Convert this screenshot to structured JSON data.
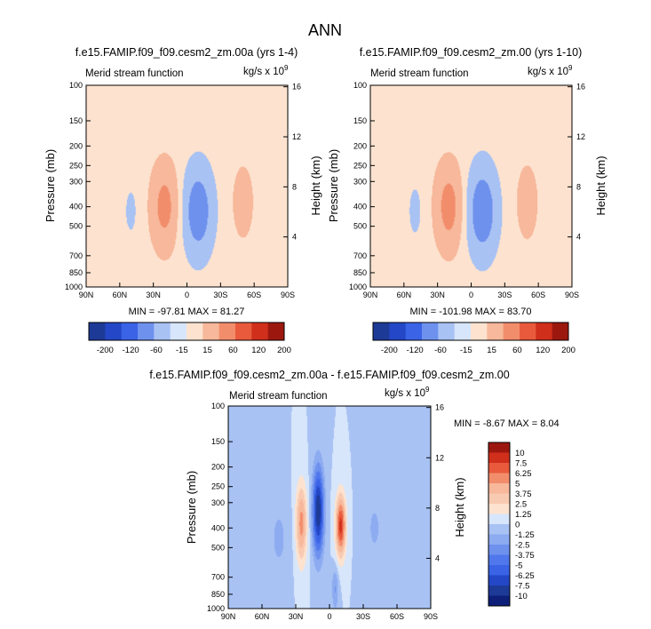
{
  "figure_title": "ANN",
  "chart_data": [
    {
      "type": "heatmap",
      "id": "p1",
      "title": "f.e15.FAMIP.f09_f09.cesm2_zm.00a (yrs 1-4)",
      "label_left": "Merid stream function",
      "units": "kg/s x 10",
      "units_exp": "9",
      "ylabel": "Pressure (mb)",
      "ylabel_right": "Height (km)",
      "x_ticks": [
        "90N",
        "60N",
        "30N",
        "0",
        "30S",
        "60S",
        "90S"
      ],
      "y_ticks": [
        "100",
        "150",
        "200",
        "250",
        "300",
        "400",
        "500",
        "700",
        "850",
        "1000"
      ],
      "y_right_ticks": [
        "16",
        "12",
        "8",
        "4"
      ],
      "stats": "MIN = -97.81   MAX =  81.27",
      "scale": 1,
      "levels": [
        -200,
        -120,
        -60,
        -15,
        15,
        60,
        120,
        200
      ],
      "colors": [
        "#1d3a97",
        "#2347c6",
        "#3a63e6",
        "#6e91ee",
        "#a9c2f4",
        "#d7e6fb",
        "#fde3cf",
        "#f7b89b",
        "#f28d6c",
        "#e85a3b",
        "#d02f1c",
        "#9c180f"
      ],
      "cells": [
        {
          "lat": 20,
          "p": 400,
          "wlat": 12,
          "dlogp": 0.48,
          "amp": 78
        },
        {
          "lat": -10,
          "p": 420,
          "wlat": 13,
          "dlogp": 0.5,
          "amp": -95
        },
        {
          "lat": -50,
          "p": 380,
          "wlat": 10,
          "dlogp": 0.45,
          "amp": 34
        },
        {
          "lat": 50,
          "p": 420,
          "wlat": 8,
          "dlogp": 0.4,
          "amp": -20
        }
      ]
    },
    {
      "type": "heatmap",
      "id": "p2",
      "title": "f.e15.FAMIP.f09_f09.cesm2_zm.00 (yrs 1-10)",
      "label_left": "Merid stream function",
      "units": "kg/s x 10",
      "units_exp": "9",
      "ylabel": "Pressure (mb)",
      "ylabel_right": "Height (km)",
      "x_ticks": [
        "90N",
        "60N",
        "30N",
        "0",
        "30S",
        "60S",
        "90S"
      ],
      "y_ticks": [
        "100",
        "150",
        "200",
        "250",
        "300",
        "400",
        "500",
        "700",
        "850",
        "1000"
      ],
      "y_right_ticks": [
        "16",
        "12",
        "8",
        "4"
      ],
      "stats": "MIN = -101.98   MAX =  83.70",
      "scale": 1,
      "levels": [
        -200,
        -120,
        -60,
        -15,
        15,
        60,
        120,
        200
      ],
      "colors": [
        "#1d3a97",
        "#2347c6",
        "#3a63e6",
        "#6e91ee",
        "#a9c2f4",
        "#d7e6fb",
        "#fde3cf",
        "#f7b89b",
        "#f28d6c",
        "#e85a3b",
        "#d02f1c",
        "#9c180f"
      ],
      "cells": [
        {
          "lat": 20,
          "p": 400,
          "wlat": 12,
          "dlogp": 0.48,
          "amp": 82
        },
        {
          "lat": -10,
          "p": 420,
          "wlat": 13,
          "dlogp": 0.5,
          "amp": -100
        },
        {
          "lat": -50,
          "p": 380,
          "wlat": 10,
          "dlogp": 0.45,
          "amp": 36
        },
        {
          "lat": 50,
          "p": 420,
          "wlat": 8,
          "dlogp": 0.4,
          "amp": -22
        }
      ]
    },
    {
      "type": "heatmap",
      "id": "p3",
      "title": "f.e15.FAMIP.f09_f09.cesm2_zm.00a - f.e15.FAMIP.f09_f09.cesm2_zm.00",
      "label_left": "Merid stream function",
      "units": "kg/s x 10",
      "units_exp": "9",
      "ylabel": "Pressure (mb)",
      "ylabel_right": "Height (km)",
      "x_ticks": [
        "90N",
        "60N",
        "30N",
        "0",
        "30S",
        "60S",
        "90S"
      ],
      "y_ticks": [
        "100",
        "150",
        "200",
        "250",
        "300",
        "400",
        "500",
        "700",
        "850",
        "1000"
      ],
      "y_right_ticks": [
        "16",
        "12",
        "8",
        "4"
      ],
      "stats": "MIN =  -8.67   MAX =   8.04",
      "scale": 0.0625,
      "levels": [
        -10,
        -7.5,
        -6.25,
        -5,
        -3.75,
        -2.5,
        -1.25,
        0,
        1.25,
        2.5,
        3.75,
        5,
        6.25,
        7.5,
        10
      ],
      "colors": [
        "#0d1f79",
        "#1d3a97",
        "#2347c6",
        "#3a63e6",
        "#5077ec",
        "#6e91ee",
        "#8cabf1",
        "#a9c2f4",
        "#d7e6fb",
        "#fde3cf",
        "#f9cab2",
        "#f7b89b",
        "#f28d6c",
        "#e85a3b",
        "#d02f1c",
        "#9c180f"
      ],
      "cells": [
        {
          "lat": 25,
          "p": 380,
          "wlat": 5,
          "dlogp": 0.45,
          "amp": 5.5
        },
        {
          "lat": 10,
          "p": 330,
          "wlat": 5,
          "dlogp": 0.5,
          "amp": -8.6
        },
        {
          "lat": -10,
          "p": 390,
          "wlat": 4.5,
          "dlogp": 0.35,
          "amp": 8.0
        },
        {
          "lat": -5,
          "p": 800,
          "wlat": 3,
          "dlogp": 0.25,
          "amp": -2.6
        },
        {
          "lat": 45,
          "p": 450,
          "wlat": 10,
          "dlogp": 0.5,
          "amp": -1.5
        },
        {
          "lat": -40,
          "p": 400,
          "wlat": 10,
          "dlogp": 0.5,
          "amp": -1.4
        }
      ]
    }
  ]
}
